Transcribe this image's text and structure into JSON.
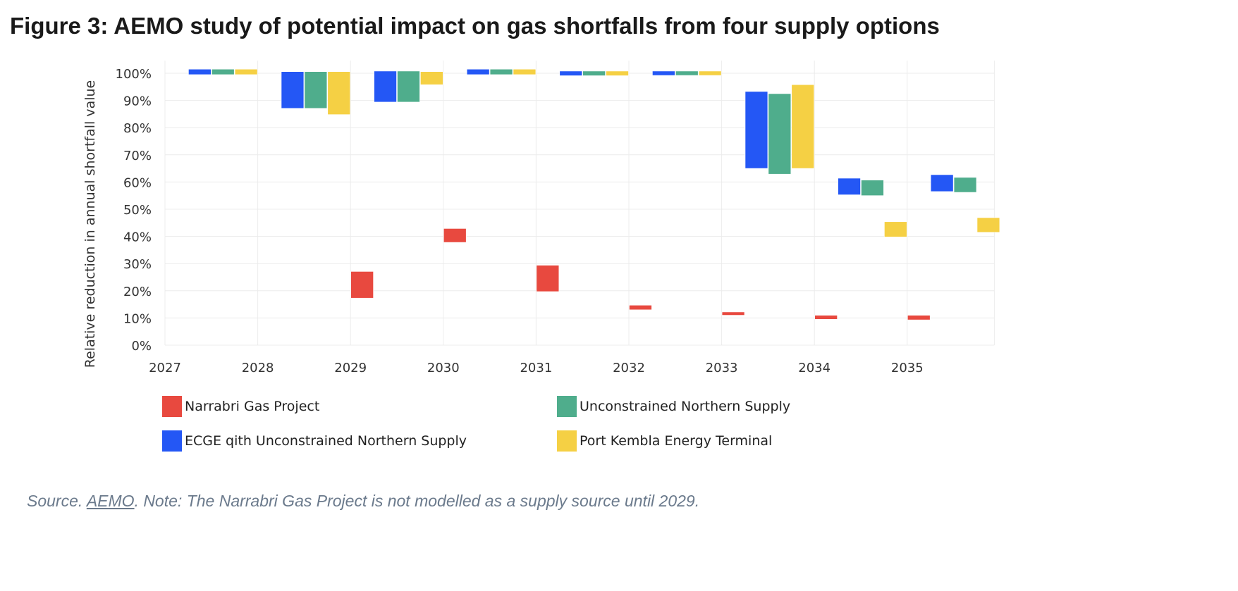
{
  "title": "Figure 3: AEMO study of potential impact on gas shortfalls from four supply options",
  "source": {
    "prefix": "Source. ",
    "link": "AEMO",
    "note": ". Note: The Narrabri Gas Project is not modelled as a supply source until 2029."
  },
  "chart_data": {
    "type": "floating-bar",
    "ylabel": "Relative reduction in annual shortfall value",
    "xlabel": "",
    "categories": [
      "2027",
      "2028",
      "2029",
      "2030",
      "2031",
      "2032",
      "2033",
      "2034",
      "2035"
    ],
    "y_ticks": [
      "0%",
      "10%",
      "20%",
      "30%",
      "40%",
      "50%",
      "60%",
      "70%",
      "80%",
      "90%",
      "100%"
    ],
    "ylim": [
      0,
      100
    ],
    "grid": true,
    "legend_position": "bottom",
    "series": [
      {
        "name": "Narrabri Gas Project",
        "color": "#e8493f",
        "ranges": [
          null,
          null,
          [
            17.3,
            27.1
          ],
          [
            37.8,
            42.9
          ],
          [
            19.7,
            29.4
          ],
          [
            13.0,
            14.7
          ],
          [
            11.0,
            12.2
          ],
          [
            9.5,
            11.0
          ],
          [
            9.3,
            11.0
          ]
        ]
      },
      {
        "name": "ECGE qith Unconstrained Northern Supply",
        "color": "#2457f5",
        "ranges": [
          [
            99.5,
            101.5
          ],
          [
            87.1,
            100.6
          ],
          [
            89.4,
            100.8
          ],
          [
            99.5,
            101.5
          ],
          [
            99.1,
            100.8
          ],
          [
            99.2,
            100.8
          ],
          [
            65.0,
            93.3
          ],
          [
            55.3,
            61.4
          ],
          [
            56.5,
            62.7
          ]
        ]
      },
      {
        "name": "Unconstrained Northern Supply",
        "color": "#4fad8c",
        "ranges": [
          [
            99.5,
            101.5
          ],
          [
            87.1,
            100.6
          ],
          [
            89.4,
            100.8
          ],
          [
            99.5,
            101.5
          ],
          [
            99.1,
            100.8
          ],
          [
            99.2,
            100.8
          ],
          [
            62.9,
            92.5
          ],
          [
            55.0,
            60.7
          ],
          [
            56.2,
            61.7
          ]
        ]
      },
      {
        "name": "Port Kembla Energy Terminal",
        "color": "#f5d044",
        "ranges": [
          [
            99.5,
            101.5
          ],
          [
            84.8,
            100.6
          ],
          [
            95.8,
            100.6
          ],
          [
            99.5,
            101.5
          ],
          [
            99.1,
            100.8
          ],
          [
            99.2,
            100.8
          ],
          [
            65.0,
            95.8
          ],
          [
            39.8,
            45.4
          ],
          [
            41.5,
            46.9
          ]
        ]
      }
    ],
    "legend_order": [
      0,
      2,
      1,
      3
    ]
  }
}
